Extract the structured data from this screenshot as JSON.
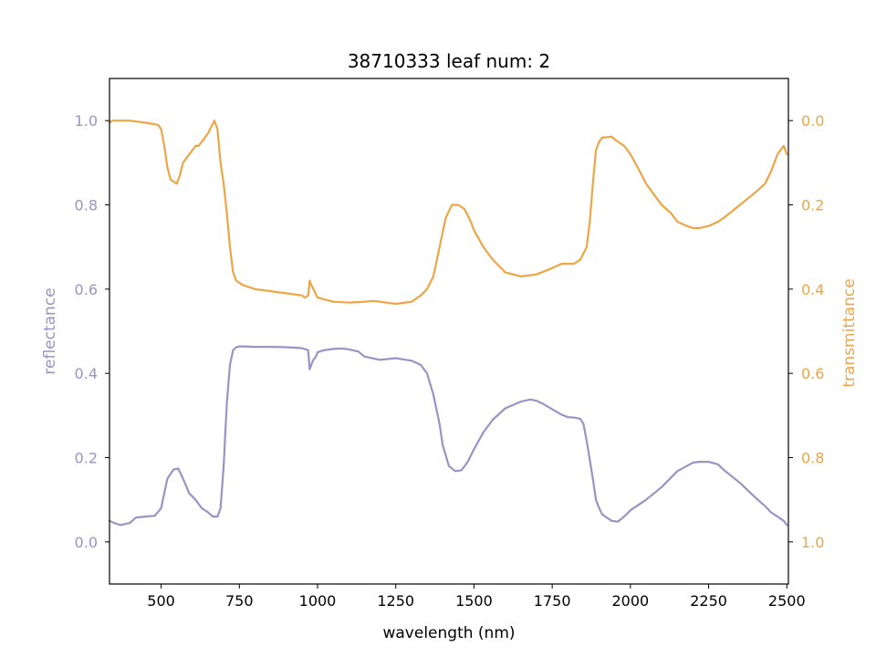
{
  "chart_data": {
    "type": "line",
    "title": "38710333 leaf num: 2",
    "xlabel": "wavelength (nm)",
    "ylabel_left": "reflectance",
    "ylabel_right": "transmittance",
    "xlim": [
      335,
      2505
    ],
    "ylim_left": [
      -0.1,
      1.1
    ],
    "ylim_right": [
      1.1,
      -0.1
    ],
    "right_axis_inverted": true,
    "x_ticks": [
      "500",
      "750",
      "1000",
      "1250",
      "1500",
      "1750",
      "2000",
      "2250",
      "2500"
    ],
    "y_ticks_left": [
      "0.0",
      "0.2",
      "0.4",
      "0.6",
      "0.8",
      "1.0"
    ],
    "y_ticks_right": [
      "0.0",
      "0.2",
      "0.4",
      "0.6",
      "0.8",
      "1.0"
    ],
    "grid": false,
    "colors": {
      "reflectance": "#9894c5",
      "transmittance": "#eda545",
      "axes": "#000000"
    },
    "series": [
      {
        "key": "reflectance",
        "axis": "left",
        "x": [
          335,
          350,
          370,
          400,
          420,
          450,
          480,
          500,
          520,
          540,
          555,
          570,
          590,
          610,
          630,
          650,
          665,
          680,
          690,
          700,
          710,
          720,
          730,
          740,
          750,
          760,
          800,
          850,
          900,
          950,
          970,
          975,
          985,
          995,
          1000,
          1020,
          1050,
          1080,
          1100,
          1130,
          1150,
          1200,
          1250,
          1300,
          1330,
          1350,
          1370,
          1390,
          1400,
          1420,
          1440,
          1460,
          1480,
          1500,
          1530,
          1560,
          1600,
          1650,
          1680,
          1700,
          1720,
          1750,
          1780,
          1800,
          1820,
          1840,
          1850,
          1860,
          1880,
          1890,
          1900,
          1910,
          1920,
          1940,
          1960,
          1980,
          2000,
          2050,
          2100,
          2150,
          2200,
          2220,
          2250,
          2280,
          2300,
          2350,
          2400,
          2430,
          2450,
          2470,
          2490,
          2500
        ],
        "y": [
          0.05,
          0.045,
          0.04,
          0.045,
          0.058,
          0.06,
          0.062,
          0.08,
          0.15,
          0.172,
          0.174,
          0.15,
          0.115,
          0.1,
          0.08,
          0.07,
          0.06,
          0.06,
          0.08,
          0.18,
          0.33,
          0.42,
          0.455,
          0.462,
          0.464,
          0.464,
          0.463,
          0.463,
          0.462,
          0.46,
          0.455,
          0.41,
          0.43,
          0.44,
          0.45,
          0.455,
          0.458,
          0.459,
          0.457,
          0.452,
          0.44,
          0.432,
          0.436,
          0.43,
          0.42,
          0.4,
          0.35,
          0.28,
          0.23,
          0.18,
          0.168,
          0.17,
          0.19,
          0.22,
          0.26,
          0.29,
          0.317,
          0.333,
          0.338,
          0.335,
          0.328,
          0.315,
          0.302,
          0.296,
          0.295,
          0.292,
          0.28,
          0.24,
          0.15,
          0.1,
          0.08,
          0.065,
          0.06,
          0.05,
          0.048,
          0.06,
          0.075,
          0.1,
          0.13,
          0.168,
          0.188,
          0.19,
          0.19,
          0.184,
          0.17,
          0.14,
          0.105,
          0.085,
          0.07,
          0.06,
          0.05,
          0.04
        ]
      },
      {
        "key": "transmittance",
        "axis": "right",
        "x": [
          335,
          345,
          360,
          380,
          400,
          450,
          490,
          500,
          510,
          520,
          530,
          540,
          550,
          560,
          570,
          580,
          590,
          600,
          610,
          620,
          630,
          640,
          650,
          660,
          670,
          680,
          690,
          700,
          710,
          720,
          730,
          740,
          750,
          760,
          780,
          800,
          850,
          900,
          950,
          960,
          970,
          975,
          980,
          990,
          1000,
          1050,
          1100,
          1150,
          1180,
          1200,
          1250,
          1280,
          1300,
          1330,
          1350,
          1370,
          1390,
          1410,
          1430,
          1450,
          1470,
          1490,
          1500,
          1530,
          1560,
          1600,
          1650,
          1700,
          1750,
          1780,
          1800,
          1820,
          1840,
          1860,
          1870,
          1880,
          1890,
          1900,
          1910,
          1920,
          1940,
          1950,
          1980,
          2000,
          2030,
          2050,
          2080,
          2100,
          2130,
          2150,
          2180,
          2200,
          2220,
          2250,
          2280,
          2300,
          2350,
          2400,
          2430,
          2450,
          2470,
          2490,
          2500
        ],
        "y": [
          0.005,
          0.0,
          0.0,
          0.0,
          0.0,
          0.005,
          0.01,
          0.02,
          0.06,
          0.11,
          0.14,
          0.145,
          0.15,
          0.13,
          0.1,
          0.09,
          0.08,
          0.07,
          0.06,
          0.06,
          0.05,
          0.04,
          0.03,
          0.015,
          0.0,
          0.02,
          0.1,
          0.15,
          0.22,
          0.3,
          0.36,
          0.38,
          0.385,
          0.39,
          0.395,
          0.4,
          0.405,
          0.41,
          0.415,
          0.42,
          0.415,
          0.38,
          0.39,
          0.405,
          0.42,
          0.43,
          0.432,
          0.43,
          0.428,
          0.43,
          0.435,
          0.432,
          0.43,
          0.415,
          0.4,
          0.37,
          0.3,
          0.23,
          0.2,
          0.2,
          0.21,
          0.24,
          0.26,
          0.3,
          0.33,
          0.36,
          0.37,
          0.365,
          0.35,
          0.34,
          0.34,
          0.34,
          0.33,
          0.3,
          0.24,
          0.15,
          0.07,
          0.05,
          0.04,
          0.04,
          0.038,
          0.045,
          0.06,
          0.08,
          0.12,
          0.15,
          0.18,
          0.2,
          0.22,
          0.24,
          0.25,
          0.255,
          0.255,
          0.25,
          0.24,
          0.23,
          0.2,
          0.17,
          0.15,
          0.12,
          0.08,
          0.06,
          0.08
        ]
      }
    ]
  }
}
